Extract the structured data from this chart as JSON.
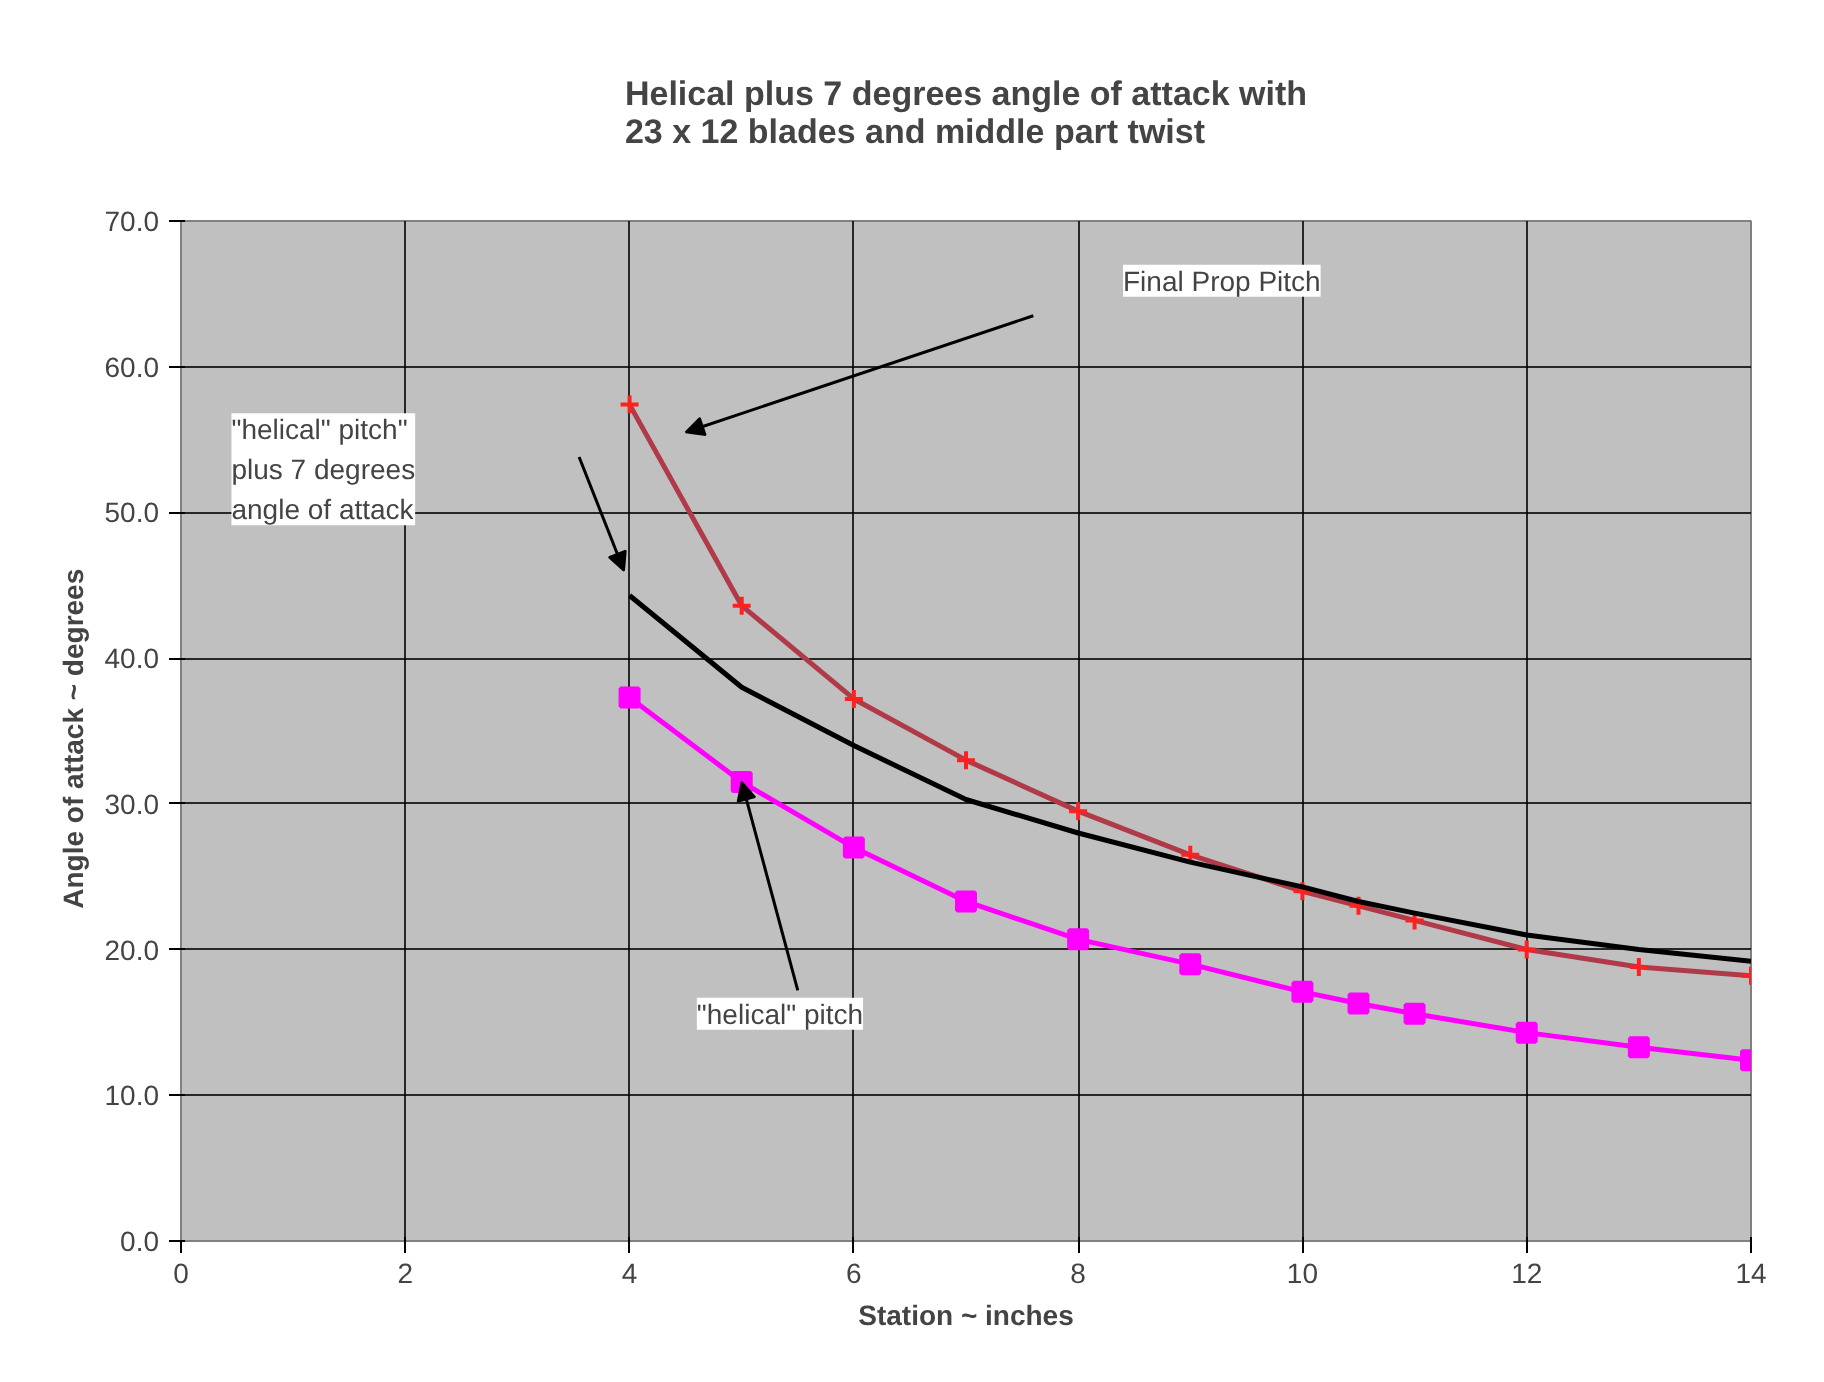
{
  "chart_data": {
    "type": "line",
    "title": "Helical plus 7 degrees angle of attack with\n23 x 12 blades and  middle part twist",
    "xlabel": "Station ~ inches",
    "ylabel": "Angle of attack   ~ degrees",
    "x": [
      4,
      5,
      6,
      7,
      8,
      9,
      10,
      10.5,
      11,
      12,
      13,
      14
    ],
    "series": [
      {
        "color": "#b03a48",
        "marker": "cross",
        "values": [
          57.4,
          43.6,
          37.2,
          33,
          29.5,
          26.5,
          24,
          23,
          22,
          20,
          18.8,
          18.2
        ]
      },
      {
        "color": "#000000",
        "marker": "none",
        "values": [
          44.3,
          38,
          34,
          30.3,
          28,
          26,
          24.3,
          23.3,
          22.5,
          21,
          20,
          19.2
        ]
      },
      {
        "color": "#ff00ff",
        "marker": "square",
        "values": [
          37.3,
          31.5,
          27,
          23.3,
          20.7,
          19,
          17.1,
          16.3,
          15.6,
          14.3,
          13.3,
          12.4
        ]
      }
    ],
    "xlim": [
      0,
      14
    ],
    "xticks": [
      0,
      2,
      4,
      6,
      8,
      10,
      12,
      14
    ],
    "ylim": [
      0,
      70
    ],
    "yticks": [
      {
        "value": 0,
        "label": "0.0"
      },
      {
        "value": 10,
        "label": "10.0"
      },
      {
        "value": 20,
        "label": "20.0"
      },
      {
        "value": 30,
        "label": "30.0"
      },
      {
        "value": 40,
        "label": "40.0"
      },
      {
        "value": 50,
        "label": "50.0"
      },
      {
        "value": 60,
        "label": "60.0"
      },
      {
        "value": 70,
        "label": "70.0"
      }
    ],
    "annotations": [
      "Final Prop Pitch",
      "\"helical\" pitch\"\nplus 7 degrees\nangle of attack",
      {
        "text": "\"helical\" pitch",
        "x": 5,
        "y": 31.5
      }
    ],
    "grid": true
  }
}
